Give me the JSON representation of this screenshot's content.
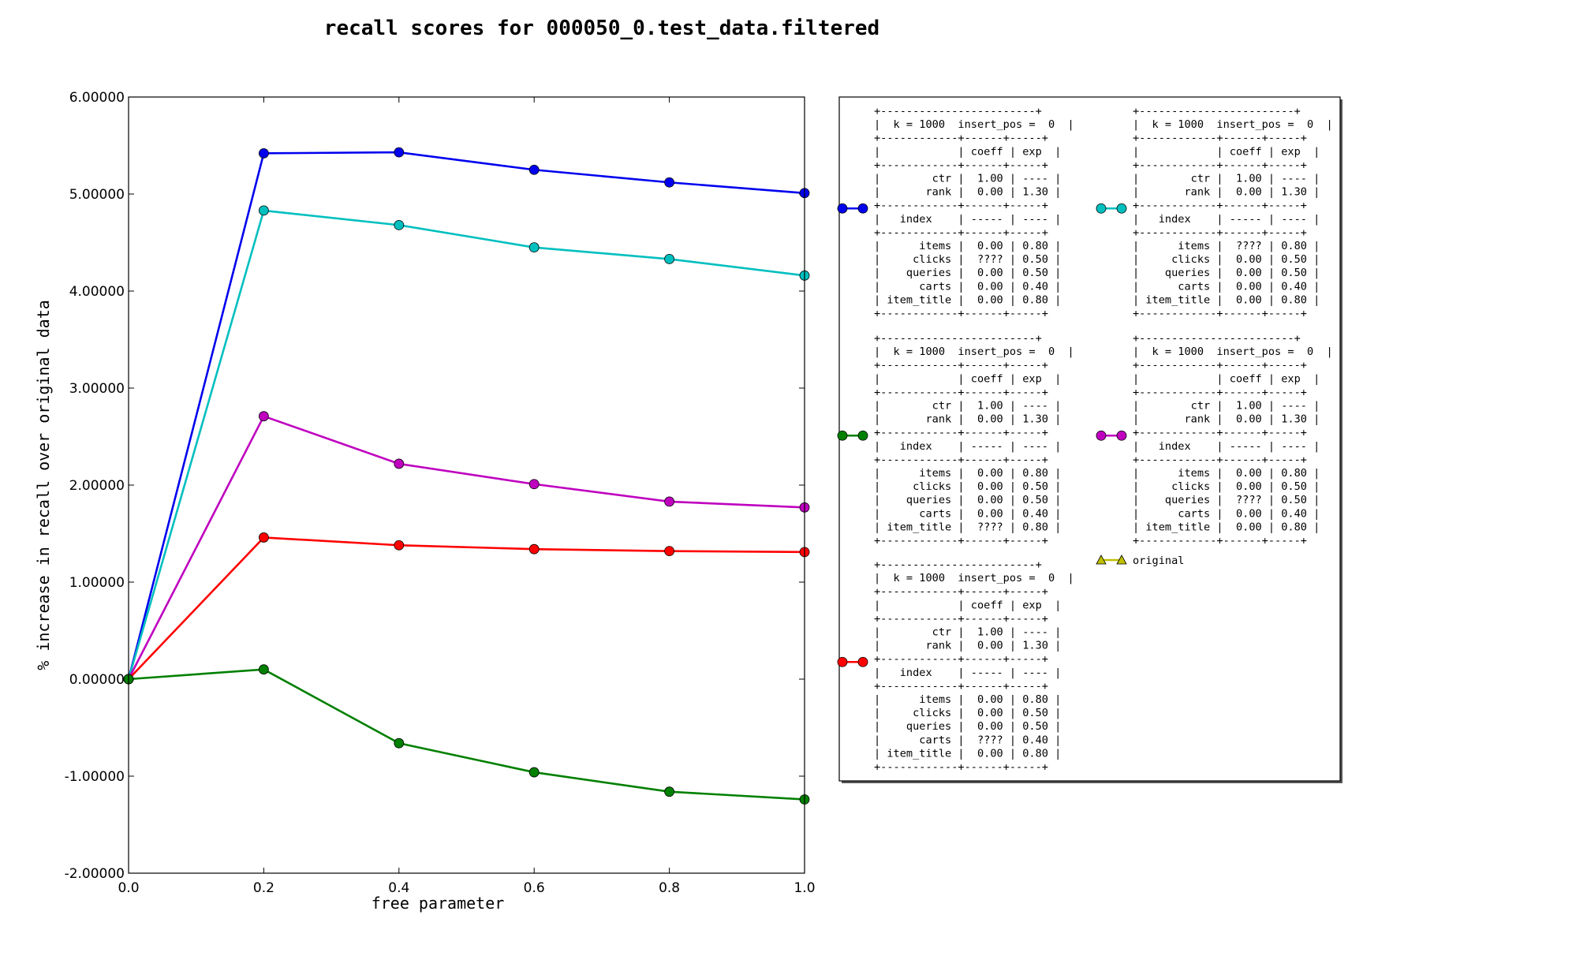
{
  "chart_data": {
    "type": "line",
    "title": "recall scores for 000050_0.test_data.filtered",
    "xlabel": "free parameter",
    "ylabel": "% increase in recall over original data",
    "xlim": [
      0.0,
      1.0
    ],
    "ylim": [
      -2.0,
      6.0
    ],
    "xticks": [
      "0.0",
      "0.2",
      "0.4",
      "0.6",
      "0.8",
      "1.0"
    ],
    "yticks": [
      "-2.00000",
      "-1.00000",
      "0.00000",
      "1.00000",
      "2.00000",
      "3.00000",
      "4.00000",
      "5.00000",
      "6.00000"
    ],
    "x": [
      0.0,
      0.2,
      0.4,
      0.6,
      0.8,
      1.0
    ],
    "grid": false,
    "legend_placement": "right, outside plot",
    "series": [
      {
        "color": "#0000ee",
        "values": [
          0.0,
          5.42,
          5.43,
          5.25,
          5.12,
          5.01
        ]
      },
      {
        "color": "#00bfbf",
        "values": [
          0.0,
          4.83,
          4.68,
          4.45,
          4.33,
          4.16
        ]
      },
      {
        "color": "#bf00bf",
        "values": [
          0.0,
          2.71,
          2.22,
          2.01,
          1.83,
          1.77
        ]
      },
      {
        "color": "#ff0000",
        "values": [
          0.0,
          1.46,
          1.38,
          1.34,
          1.32,
          1.31
        ]
      },
      {
        "color": "#008000",
        "values": [
          0.0,
          0.1,
          -0.66,
          -0.96,
          -1.16,
          -1.24
        ]
      }
    ],
    "legend": [
      {
        "series": 0,
        "lines": [
          "+------------------------+",
          "|  k = 1000  insert_pos =  0  |",
          "+------------+------+-----+",
          "|            | coeff | exp  |",
          "+------------+------+-----+",
          "|        ctr |  1.00 | ---- |",
          "|       rank |  0.00 | 1.30 |",
          "+------------+------+-----+",
          "|   index    | ----- | ---- |",
          "+------------+------+-----+",
          "|      items |  0.00 | 0.80 |",
          "|     clicks |  ???? | 0.50 |",
          "|    queries |  0.00 | 0.50 |",
          "|      carts |  0.00 | 0.40 |",
          "| item_title |  0.00 | 0.80 |",
          "+------------+------+-----+"
        ]
      },
      {
        "series": 1,
        "lines": [
          "+------------------------+",
          "|  k = 1000  insert_pos =  0  |",
          "+------------+------+-----+",
          "|            | coeff | exp  |",
          "+------------+------+-----+",
          "|        ctr |  1.00 | ---- |",
          "|       rank |  0.00 | 1.30 |",
          "+------------+------+-----+",
          "|   index    | ----- | ---- |",
          "+------------+------+-----+",
          "|      items |  ???? | 0.80 |",
          "|     clicks |  0.00 | 0.50 |",
          "|    queries |  0.00 | 0.50 |",
          "|      carts |  0.00 | 0.40 |",
          "| item_title |  0.00 | 0.80 |",
          "+------------+------+-----+"
        ]
      },
      {
        "series": 4,
        "lines": [
          "+------------------------+",
          "|  k = 1000  insert_pos =  0  |",
          "+------------+------+-----+",
          "|            | coeff | exp  |",
          "+------------+------+-----+",
          "|        ctr |  1.00 | ---- |",
          "|       rank |  0.00 | 1.30 |",
          "+------------+------+-----+",
          "|   index    | ----- | ---- |",
          "+------------+------+-----+",
          "|      items |  0.00 | 0.80 |",
          "|     clicks |  0.00 | 0.50 |",
          "|    queries |  0.00 | 0.50 |",
          "|      carts |  0.00 | 0.40 |",
          "| item_title |  ???? | 0.80 |",
          "+------------+------+-----+"
        ]
      },
      {
        "series": 2,
        "lines": [
          "+------------------------+",
          "|  k = 1000  insert_pos =  0  |",
          "+------------+------+-----+",
          "|            | coeff | exp  |",
          "+------------+------+-----+",
          "|        ctr |  1.00 | ---- |",
          "|       rank |  0.00 | 1.30 |",
          "+------------+------+-----+",
          "|   index    | ----- | ---- |",
          "+------------+------+-----+",
          "|      items |  0.00 | 0.80 |",
          "|     clicks |  0.00 | 0.50 |",
          "|    queries |  ???? | 0.50 |",
          "|      carts |  0.00 | 0.40 |",
          "| item_title |  0.00 | 0.80 |",
          "+------------+------+-----+"
        ]
      },
      {
        "series": 3,
        "lines": [
          "+------------------------+",
          "|  k = 1000  insert_pos =  0  |",
          "+------------+------+-----+",
          "|            | coeff | exp  |",
          "+------------+------+-----+",
          "|        ctr |  1.00 | ---- |",
          "|       rank |  0.00 | 1.30 |",
          "+------------+------+-----+",
          "|   index    | ----- | ---- |",
          "+------------+------+-----+",
          "|      items |  0.00 | 0.80 |",
          "|     clicks |  0.00 | 0.50 |",
          "|    queries |  0.00 | 0.50 |",
          "|      carts |  ???? | 0.40 |",
          "| item_title |  0.00 | 0.80 |",
          "+------------+------+-----+"
        ]
      },
      {
        "original": true,
        "color": "#bfbf00",
        "marker": "triangle",
        "lines": [
          "original"
        ]
      }
    ]
  }
}
